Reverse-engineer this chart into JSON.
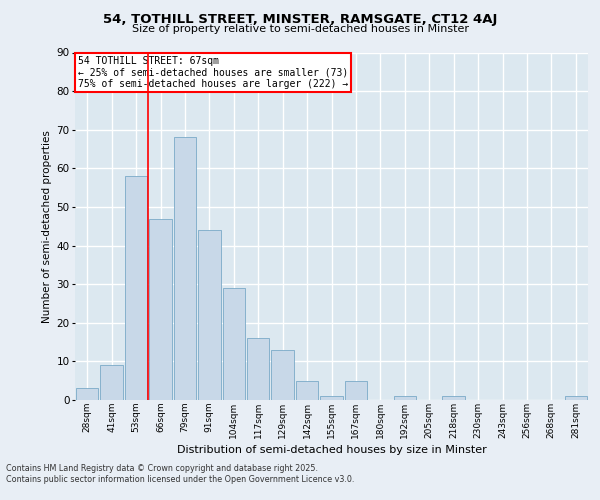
{
  "title_line1": "54, TOTHILL STREET, MINSTER, RAMSGATE, CT12 4AJ",
  "title_line2": "Size of property relative to semi-detached houses in Minster",
  "xlabel": "Distribution of semi-detached houses by size in Minster",
  "ylabel": "Number of semi-detached properties",
  "bin_labels": [
    "28sqm",
    "41sqm",
    "53sqm",
    "66sqm",
    "79sqm",
    "91sqm",
    "104sqm",
    "117sqm",
    "129sqm",
    "142sqm",
    "155sqm",
    "167sqm",
    "180sqm",
    "192sqm",
    "205sqm",
    "218sqm",
    "230sqm",
    "243sqm",
    "256sqm",
    "268sqm",
    "281sqm"
  ],
  "bar_values": [
    3,
    9,
    58,
    47,
    68,
    44,
    29,
    16,
    13,
    5,
    1,
    5,
    0,
    1,
    0,
    1,
    0,
    0,
    0,
    0,
    1
  ],
  "bar_color": "#c8d8e8",
  "bar_edge_color": "#7aaac8",
  "vline_x_index": 2.5,
  "property_label": "54 TOTHILL STREET: 67sqm",
  "pct_smaller": 25,
  "n_smaller": 73,
  "pct_larger": 75,
  "n_larger": 222,
  "ylim": [
    0,
    90
  ],
  "yticks": [
    0,
    10,
    20,
    30,
    40,
    50,
    60,
    70,
    80,
    90
  ],
  "background_color": "#e8eef5",
  "plot_background": "#dce8f0",
  "grid_color": "#ffffff",
  "footnote1": "Contains HM Land Registry data © Crown copyright and database right 2025.",
  "footnote2": "Contains public sector information licensed under the Open Government Licence v3.0."
}
